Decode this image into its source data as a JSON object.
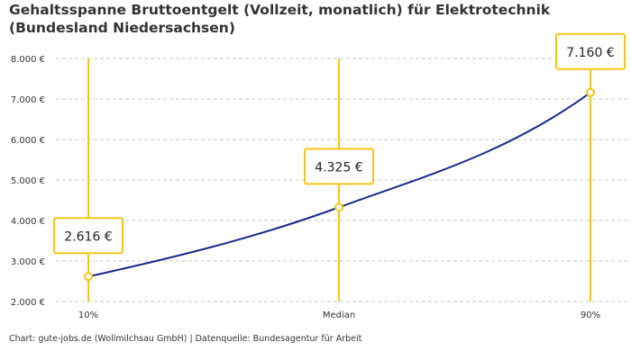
{
  "chart_data": {
    "type": "line",
    "title": "Gehaltsspanne Bruttoentgelt (Vollzeit, monatlich) für Elektrotechnik (Bundesland Niedersachsen)",
    "categories": [
      "10%",
      "Median",
      "90%"
    ],
    "values": [
      2616,
      4325,
      7160
    ],
    "data_labels": [
      "2.616 €",
      "4.325 €",
      "7.160 €"
    ],
    "ylim": [
      2000,
      8000
    ],
    "yticks": [
      2000,
      3000,
      4000,
      5000,
      6000,
      7000,
      8000
    ],
    "ytick_labels": [
      "2.000 €",
      "3.000 €",
      "4.000 €",
      "5.000 €",
      "6.000 €",
      "7.000 €",
      "8.000 €"
    ],
    "grid": true,
    "colors": {
      "line": "#1a2a8c",
      "marker": "#f5c518",
      "grid": "#c8c8c8"
    }
  },
  "footer": "Chart: gute-jobs.de (Wollmilchsau GmbH) | Datenquelle: Bundesagentur für Arbeit"
}
